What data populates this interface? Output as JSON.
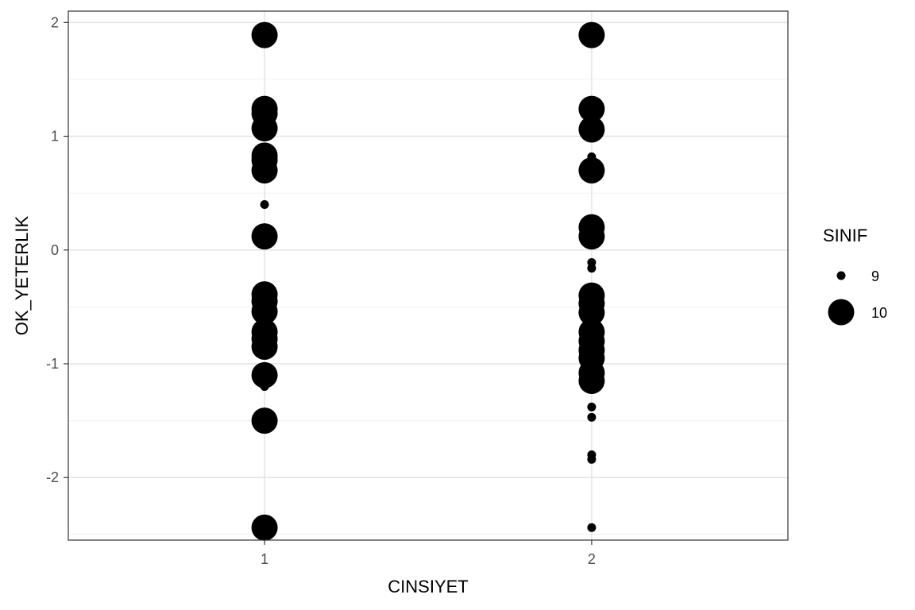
{
  "chart_data": {
    "type": "scatter",
    "xlabel": "CINSIYET",
    "ylabel": "OK_YETERLIK",
    "x_categories": [
      "1",
      "2"
    ],
    "yticks": [
      -2,
      -1,
      0,
      1,
      2
    ],
    "ylim": [
      -2.55,
      2.1
    ],
    "grid": true,
    "legend": {
      "title": "SINIF",
      "position": "right",
      "entries": [
        {
          "label": "9",
          "size_class": 9
        },
        {
          "label": "10",
          "size_class": 10
        }
      ]
    },
    "series": [
      {
        "name": "10",
        "points": [
          {
            "x": "1",
            "y": 1.89
          },
          {
            "x": "1",
            "y": 1.24
          },
          {
            "x": "1",
            "y": 1.2
          },
          {
            "x": "1",
            "y": 1.07
          },
          {
            "x": "1",
            "y": 0.83
          },
          {
            "x": "1",
            "y": 0.79
          },
          {
            "x": "1",
            "y": 0.7
          },
          {
            "x": "1",
            "y": 0.12
          },
          {
            "x": "1",
            "y": -0.39
          },
          {
            "x": "1",
            "y": -0.45
          },
          {
            "x": "1",
            "y": -0.54
          },
          {
            "x": "1",
            "y": -0.72
          },
          {
            "x": "1",
            "y": -0.78
          },
          {
            "x": "1",
            "y": -0.85
          },
          {
            "x": "1",
            "y": -1.1
          },
          {
            "x": "1",
            "y": -1.5
          },
          {
            "x": "1",
            "y": -2.44
          },
          {
            "x": "2",
            "y": 1.89
          },
          {
            "x": "2",
            "y": 1.24
          },
          {
            "x": "2",
            "y": 1.06
          },
          {
            "x": "2",
            "y": 0.7
          },
          {
            "x": "2",
            "y": 0.2
          },
          {
            "x": "2",
            "y": 0.12
          },
          {
            "x": "2",
            "y": -0.4
          },
          {
            "x": "2",
            "y": -0.47
          },
          {
            "x": "2",
            "y": -0.55
          },
          {
            "x": "2",
            "y": -0.72
          },
          {
            "x": "2",
            "y": -0.8
          },
          {
            "x": "2",
            "y": -0.88
          },
          {
            "x": "2",
            "y": -0.95
          },
          {
            "x": "2",
            "y": -1.08
          },
          {
            "x": "2",
            "y": -1.15
          }
        ]
      },
      {
        "name": "9",
        "points": [
          {
            "x": "1",
            "y": 0.4
          },
          {
            "x": "1",
            "y": -1.2
          },
          {
            "x": "2",
            "y": 0.82
          },
          {
            "x": "2",
            "y": -0.11
          },
          {
            "x": "2",
            "y": -0.16
          },
          {
            "x": "2",
            "y": -1.38
          },
          {
            "x": "2",
            "y": -1.47
          },
          {
            "x": "2",
            "y": -1.8
          },
          {
            "x": "2",
            "y": -1.84
          },
          {
            "x": "2",
            "y": -2.44
          }
        ]
      }
    ]
  }
}
